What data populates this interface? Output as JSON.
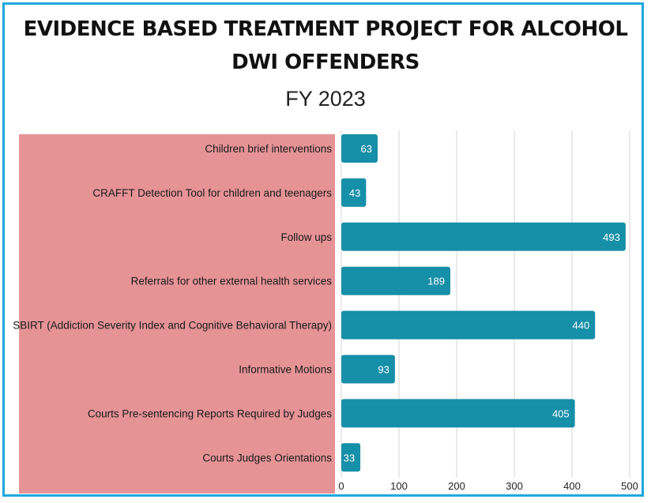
{
  "header": {
    "title_line1": "EVIDENCE BASED TREATMENT PROJECT FOR ALCOHOL",
    "title_line2": "DWI OFFENDERS",
    "subtitle": "FY 2023"
  },
  "colors": {
    "bar": "#168fa8",
    "label_panel": "#e69396",
    "frame": "#1fa7e0",
    "grid": "#d4d4d4"
  },
  "chart_data": {
    "type": "bar",
    "orientation": "horizontal",
    "title": "EVIDENCE BASED TREATMENT PROJECT FOR ALCOHOL DWI OFFENDERS",
    "subtitle": "FY 2023",
    "categories": [
      "Children brief interventions",
      "CRAFFT Detection Tool for children and teenagers",
      "Follow ups",
      "Referrals for other external health services",
      "SBIRT (Addiction Severity Index and Cognitive Behavioral Therapy)",
      "Informative Motions",
      "Courts Pre-sentencing Reports Required by Judges",
      "Courts Judges Orientations"
    ],
    "values": [
      63,
      43,
      493,
      189,
      440,
      93,
      405,
      33
    ],
    "xlim": [
      0,
      500
    ],
    "xticks": [
      0,
      100,
      200,
      300,
      400,
      500
    ],
    "grid": true,
    "data_labels": true,
    "xlabel": "",
    "ylabel": ""
  }
}
